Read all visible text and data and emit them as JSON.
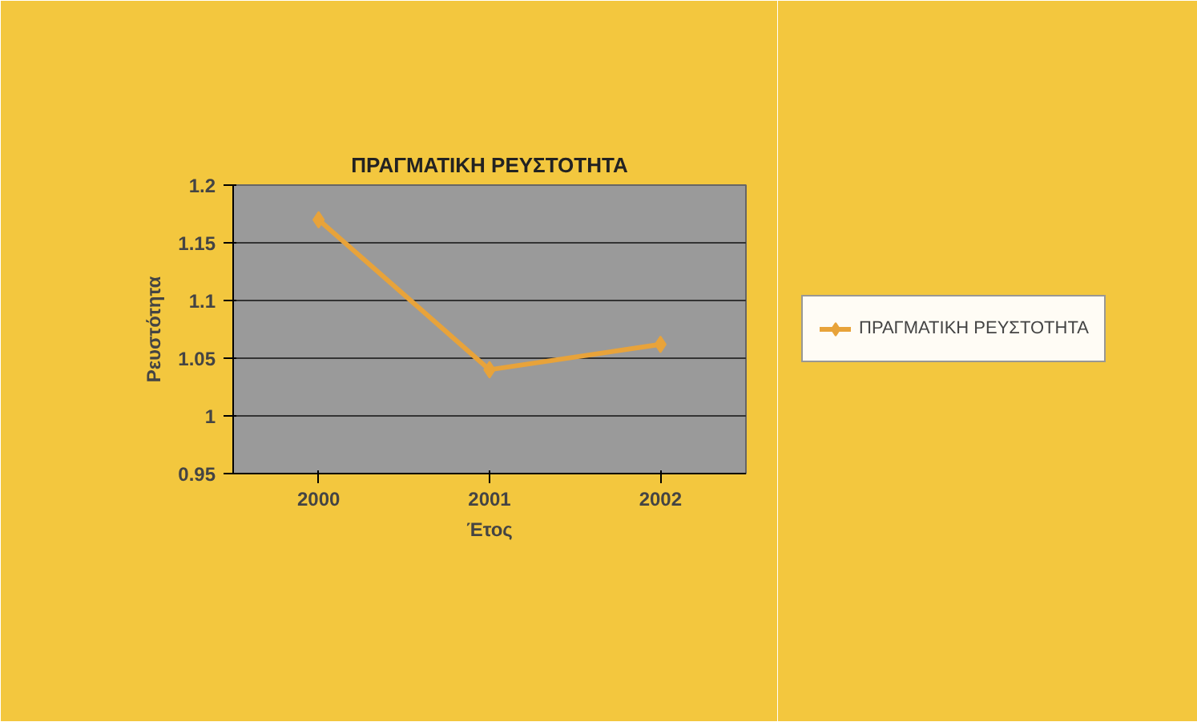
{
  "chart_data": {
    "type": "line",
    "title": "ΠΡΑΓΜΑΤΙΚΗ ΡΕΥΣΤΟΤΗΤΑ",
    "xlabel": "Έτος",
    "ylabel": "Ρευστότητα",
    "categories": [
      "2000",
      "2001",
      "2002"
    ],
    "series": [
      {
        "name": "ΠΡΑΓΜΑΤΙΚΗ ΡΕΥΣΤΟΤΗΤΑ",
        "color": "#e8a33a",
        "values": [
          1.17,
          1.04,
          1.062
        ]
      }
    ],
    "ylim": [
      0.95,
      1.2
    ],
    "yticks": [
      0.95,
      1,
      1.05,
      1.1,
      1.15,
      1.2
    ],
    "grid": "y",
    "legend": "right",
    "marker": "diamond",
    "line_style": "solid"
  }
}
